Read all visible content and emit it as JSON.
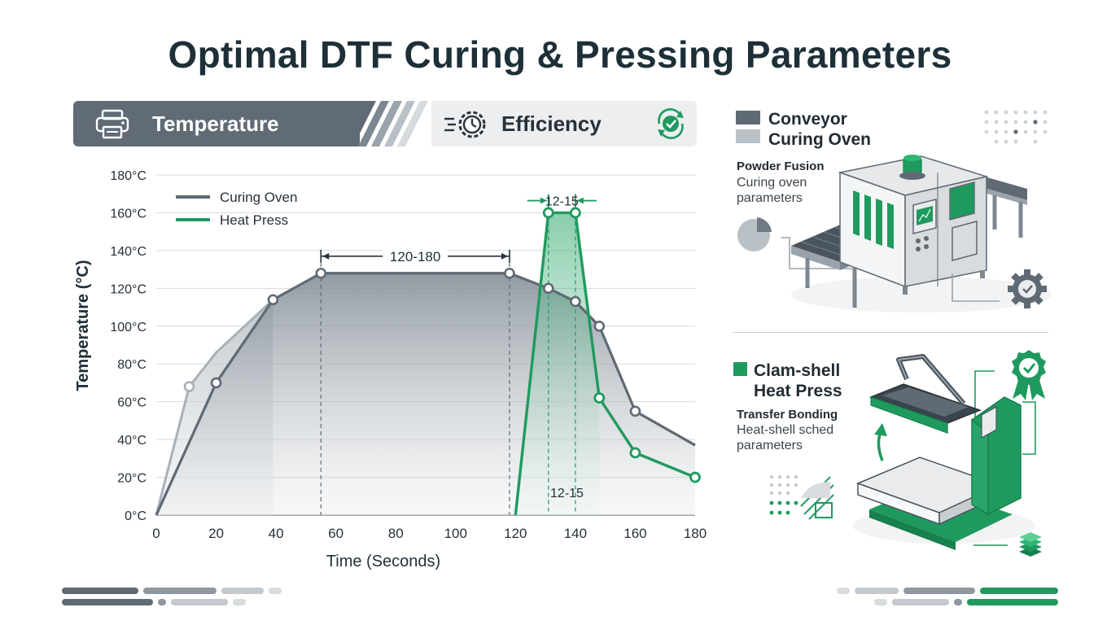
{
  "title": "Optimal DTF Curing & Pressing Parameters",
  "header": {
    "temperature_label": "Temperature",
    "efficiency_label": "Efficiency",
    "printer_icon": "printer-icon",
    "stopwatch_icon": "stopwatch-gear-icon",
    "check_icon": "check-cycle-icon"
  },
  "colors": {
    "gray": "#5f6a74",
    "green": "#1f9a5e",
    "dark_text": "#1e2f38"
  },
  "chart_data": {
    "type": "line",
    "xlabel": "Time (Seconds)",
    "ylabel": "Temperature (°C)",
    "xlim": [
      0,
      180
    ],
    "ylim": [
      0,
      180
    ],
    "x_ticks": [
      "0",
      "20",
      "40",
      "60",
      "80",
      "100",
      "120",
      "140",
      "160",
      "180"
    ],
    "y_ticks": [
      "0°C",
      "20°C",
      "40°C",
      "60°C",
      "80°C",
      "100°C",
      "120°C",
      "140°C",
      "160°C",
      "180°C"
    ],
    "grid": true,
    "legend_position": "top-left",
    "series": [
      {
        "name": "Curing Oven",
        "color": "#5f6a74",
        "x": [
          0,
          20,
          39,
          55,
          118,
          131,
          140,
          148,
          160,
          180
        ],
        "y": [
          0,
          70,
          114,
          128,
          128,
          120,
          113,
          100,
          55,
          37
        ],
        "markers_x": [
          20,
          39,
          55,
          118,
          131,
          140,
          148,
          160
        ]
      },
      {
        "name": "Heat Press",
        "color": "#1f9a5e",
        "x": [
          120,
          131,
          140,
          148,
          160,
          180
        ],
        "y": [
          0,
          160,
          160,
          62,
          33,
          20
        ],
        "markers_x": [
          131,
          140,
          148,
          160,
          180
        ]
      }
    ],
    "background_curve": {
      "x": [
        0,
        11,
        20,
        39
      ],
      "y": [
        0,
        68,
        86,
        114
      ],
      "marker_x": [
        11
      ]
    },
    "annotations": [
      {
        "text": "120-180",
        "x_start": 55,
        "x_end": 118,
        "y": 137
      },
      {
        "text": "12-15",
        "x_start": 131,
        "x_end": 140,
        "y": 169
      },
      {
        "text": "12-15",
        "x": 135,
        "y": 12
      }
    ]
  },
  "conveyor": {
    "title_line1": "Conveyor",
    "title_line2": "Curing Oven",
    "subtitle": "Powder Fusion",
    "desc_line1": "Curing oven",
    "desc_line2": "parameters"
  },
  "clamshell": {
    "title_line1": "Clam-shell",
    "title_line2": "Heat Press",
    "subtitle": "Transfer Bonding",
    "desc_line1": "Heat-shell sched",
    "desc_line2": "parameters"
  }
}
